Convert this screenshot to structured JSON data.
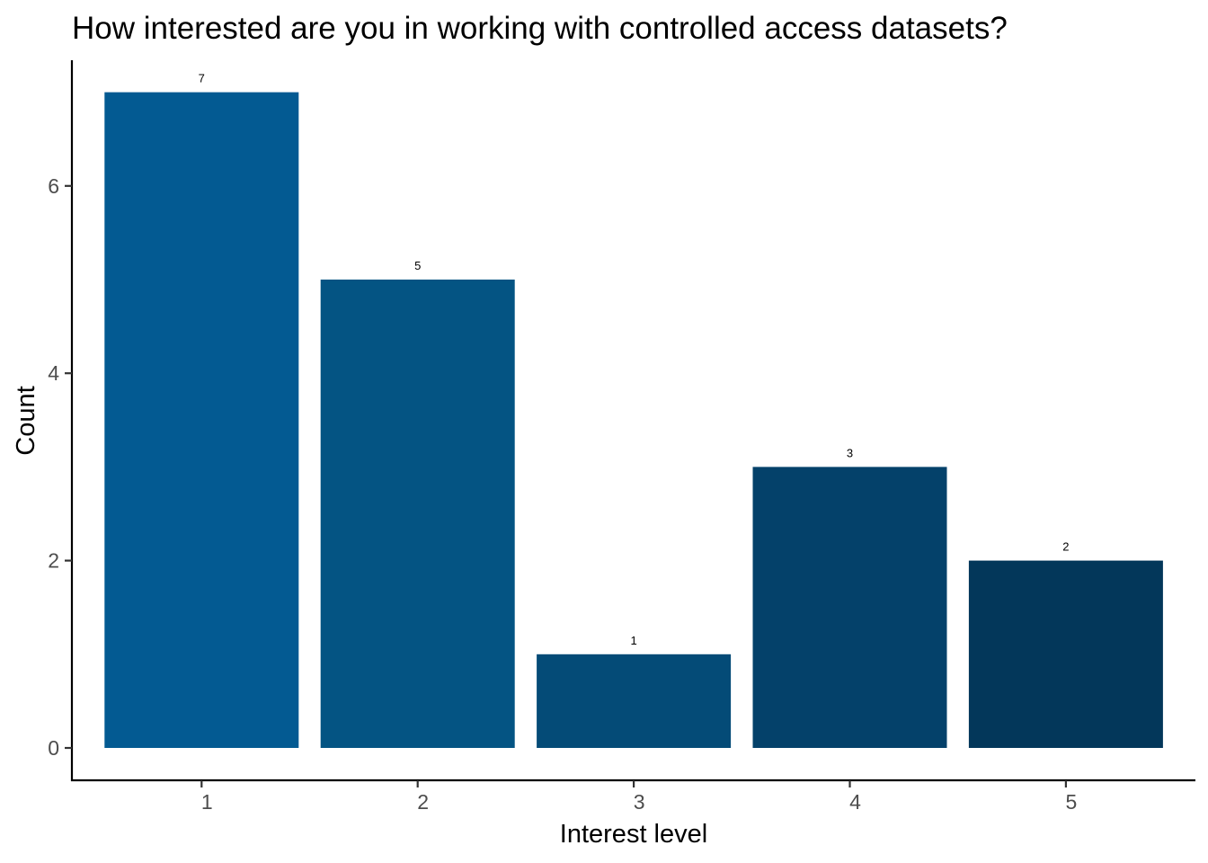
{
  "chart_data": {
    "type": "bar",
    "title": "How interested are you in working with controlled access datasets?",
    "xlabel": "Interest level",
    "ylabel": "Count",
    "categories": [
      "1",
      "2",
      "3",
      "4",
      "5"
    ],
    "values": [
      7,
      5,
      1,
      3,
      2
    ],
    "data_labels": [
      "7",
      "5",
      "1",
      "3",
      "2"
    ],
    "ylim": [
      0,
      7.35
    ],
    "yticks": [
      0,
      2,
      4,
      6
    ],
    "ytick_labels": [
      "0",
      "2",
      "4",
      "6"
    ],
    "colors": [
      "#035A92",
      "#045483",
      "#044B77",
      "#04416A",
      "#03375A"
    ],
    "grid": false,
    "legend": "none"
  }
}
